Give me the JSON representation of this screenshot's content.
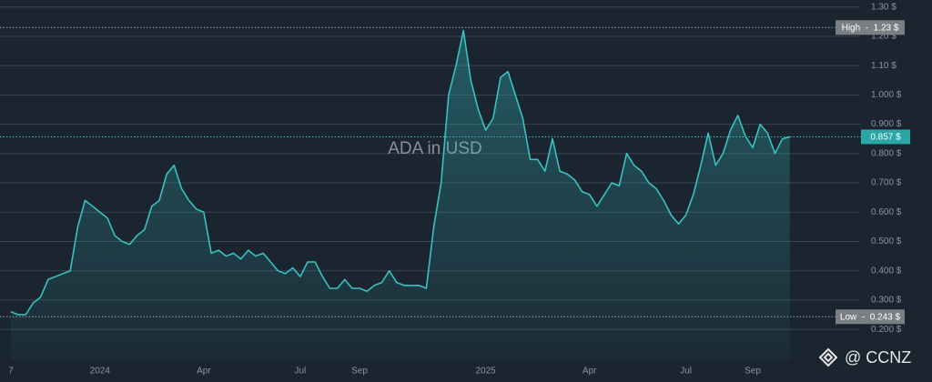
{
  "chart_data": {
    "type": "line",
    "watermark": "ADA in USD",
    "brand": "@ CCNZ",
    "categories": [
      "7",
      null,
      null,
      null,
      null,
      null,
      null,
      null,
      null,
      null,
      null,
      null,
      "2024",
      null,
      null,
      null,
      null,
      null,
      null,
      null,
      null,
      null,
      null,
      null,
      null,
      null,
      "Apr",
      null,
      null,
      null,
      null,
      null,
      null,
      null,
      null,
      null,
      null,
      null,
      null,
      "Jul",
      null,
      null,
      null,
      null,
      null,
      null,
      null,
      "Sep",
      null,
      null,
      null,
      null,
      null,
      null,
      null,
      null,
      null,
      null,
      null,
      null,
      null,
      null,
      null,
      null,
      "2025",
      null,
      null,
      null,
      null,
      null,
      null,
      null,
      null,
      null,
      null,
      null,
      null,
      null,
      "Apr",
      null,
      null,
      null,
      null,
      null,
      null,
      null,
      null,
      null,
      null,
      null,
      null,
      "Jul",
      null,
      null,
      null,
      null,
      null,
      null,
      null,
      null,
      "Sep",
      null,
      null,
      null,
      null,
      null
    ],
    "series": [
      {
        "name": "ADA",
        "color": "#36c2c2",
        "values": [
          0.26,
          0.25,
          0.25,
          0.29,
          0.31,
          0.37,
          0.38,
          0.39,
          0.4,
          0.55,
          0.64,
          0.62,
          0.6,
          0.58,
          0.52,
          0.5,
          0.49,
          0.52,
          0.54,
          0.62,
          0.64,
          0.73,
          0.76,
          0.68,
          0.64,
          0.61,
          0.6,
          0.46,
          0.47,
          0.45,
          0.46,
          0.44,
          0.47,
          0.45,
          0.46,
          0.43,
          0.4,
          0.39,
          0.41,
          0.38,
          0.43,
          0.43,
          0.38,
          0.34,
          0.34,
          0.37,
          0.34,
          0.34,
          0.33,
          0.35,
          0.36,
          0.4,
          0.36,
          0.35,
          0.35,
          0.35,
          0.34,
          0.55,
          0.7,
          1.0,
          1.1,
          1.22,
          1.05,
          0.95,
          0.88,
          0.92,
          1.06,
          1.08,
          1.0,
          0.92,
          0.78,
          0.78,
          0.74,
          0.85,
          0.74,
          0.73,
          0.71,
          0.67,
          0.66,
          0.62,
          0.66,
          0.7,
          0.69,
          0.8,
          0.76,
          0.74,
          0.7,
          0.68,
          0.64,
          0.59,
          0.56,
          0.59,
          0.66,
          0.76,
          0.87,
          0.76,
          0.8,
          0.88,
          0.93,
          0.86,
          0.82,
          0.9,
          0.87,
          0.8,
          0.85,
          0.857
        ]
      }
    ],
    "ylim": [
      0.098,
      1.324
    ],
    "yticks": [
      {
        "value": 0.2,
        "label": "0.200 $"
      },
      {
        "value": 0.3,
        "label": "0.300 $"
      },
      {
        "value": 0.4,
        "label": "0.400 $"
      },
      {
        "value": 0.5,
        "label": "0.500 $"
      },
      {
        "value": 0.6,
        "label": "0.600 $"
      },
      {
        "value": 0.7,
        "label": "0.700 $"
      },
      {
        "value": 0.8,
        "label": "0.800 $"
      },
      {
        "value": 0.9,
        "label": "0.900 $"
      },
      {
        "value": 1.0,
        "label": "1.000 $"
      },
      {
        "value": 1.1,
        "label": "1.10 $"
      },
      {
        "value": 1.2,
        "label": "1.20 $"
      },
      {
        "value": 1.3,
        "label": "1.30 $"
      }
    ],
    "grid": true,
    "high": {
      "value": 1.23,
      "label": "High  -  1.23 $"
    },
    "low": {
      "value": 0.243,
      "label": "Low  -  0.243 $"
    },
    "current": {
      "value": 0.857,
      "label": "0.857 $"
    }
  }
}
